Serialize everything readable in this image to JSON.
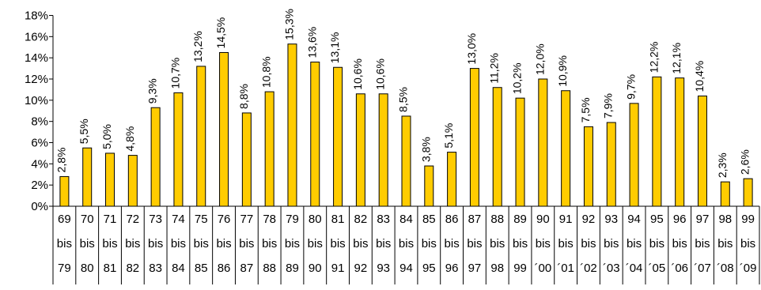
{
  "chart_data": {
    "type": "bar",
    "title": "",
    "xlabel": "",
    "ylabel": "",
    "ylim": [
      0,
      18
    ],
    "yticks": [
      0,
      2,
      4,
      6,
      8,
      10,
      12,
      14,
      16,
      18
    ],
    "ytick_labels": [
      "0%",
      "2%",
      "4%",
      "6%",
      "8%",
      "10%",
      "12%",
      "14%",
      "16%",
      "18%"
    ],
    "grid": false,
    "legend": "none",
    "bar_color": "#FFCC00",
    "bar_edge_color": "#000000",
    "categories": [
      [
        "69",
        "bis",
        "79"
      ],
      [
        "70",
        "bis",
        "80"
      ],
      [
        "71",
        "bis",
        "81"
      ],
      [
        "72",
        "bis",
        "82"
      ],
      [
        "73",
        "bis",
        "83"
      ],
      [
        "74",
        "bis",
        "84"
      ],
      [
        "75",
        "bis",
        "85"
      ],
      [
        "76",
        "bis",
        "86"
      ],
      [
        "77",
        "bis",
        "87"
      ],
      [
        "78",
        "bis",
        "88"
      ],
      [
        "79",
        "bis",
        "89"
      ],
      [
        "80",
        "bis",
        "90"
      ],
      [
        "81",
        "bis",
        "91"
      ],
      [
        "82",
        "bis",
        "92"
      ],
      [
        "83",
        "bis",
        "93"
      ],
      [
        "84",
        "bis",
        "94"
      ],
      [
        "85",
        "bis",
        "95"
      ],
      [
        "86",
        "bis",
        "96"
      ],
      [
        "87",
        "bis",
        "97"
      ],
      [
        "88",
        "bis",
        "98"
      ],
      [
        "89",
        "bis",
        "99"
      ],
      [
        "90",
        "bis",
        "´00"
      ],
      [
        "91",
        "bis",
        "´01"
      ],
      [
        "92",
        "bis",
        "´02"
      ],
      [
        "93",
        "bis",
        "´03"
      ],
      [
        "94",
        "bis",
        "´04"
      ],
      [
        "95",
        "bis",
        "´05"
      ],
      [
        "96",
        "bis",
        "´06"
      ],
      [
        "97",
        "bis",
        "´07"
      ],
      [
        "98",
        "bis",
        "´08"
      ],
      [
        "99",
        "bis",
        "´09"
      ]
    ],
    "values": [
      2.8,
      5.5,
      5.0,
      4.8,
      9.3,
      10.7,
      13.2,
      14.5,
      8.8,
      10.8,
      15.3,
      13.6,
      13.1,
      10.6,
      10.6,
      8.5,
      3.8,
      5.1,
      13.0,
      11.2,
      10.2,
      12.0,
      10.9,
      7.5,
      7.9,
      9.7,
      12.2,
      12.1,
      10.4,
      2.3,
      2.6
    ],
    "value_labels": [
      "2,8%",
      "5,5%",
      "5,0%",
      "4,8%",
      "9,3%",
      "10,7%",
      "13,2%",
      "14,5%",
      "8,8%",
      "10,8%",
      "15,3%",
      "13,6%",
      "13,1%",
      "10,6%",
      "10,6%",
      "8,5%",
      "3,8%",
      "5,1%",
      "13,0%",
      "11,2%",
      "10,2%",
      "12,0%",
      "10,9%",
      "7,5%",
      "7,9%",
      "9,7%",
      "12,2%",
      "12,1%",
      "10,4%",
      "2,3%",
      "2,6%"
    ]
  }
}
